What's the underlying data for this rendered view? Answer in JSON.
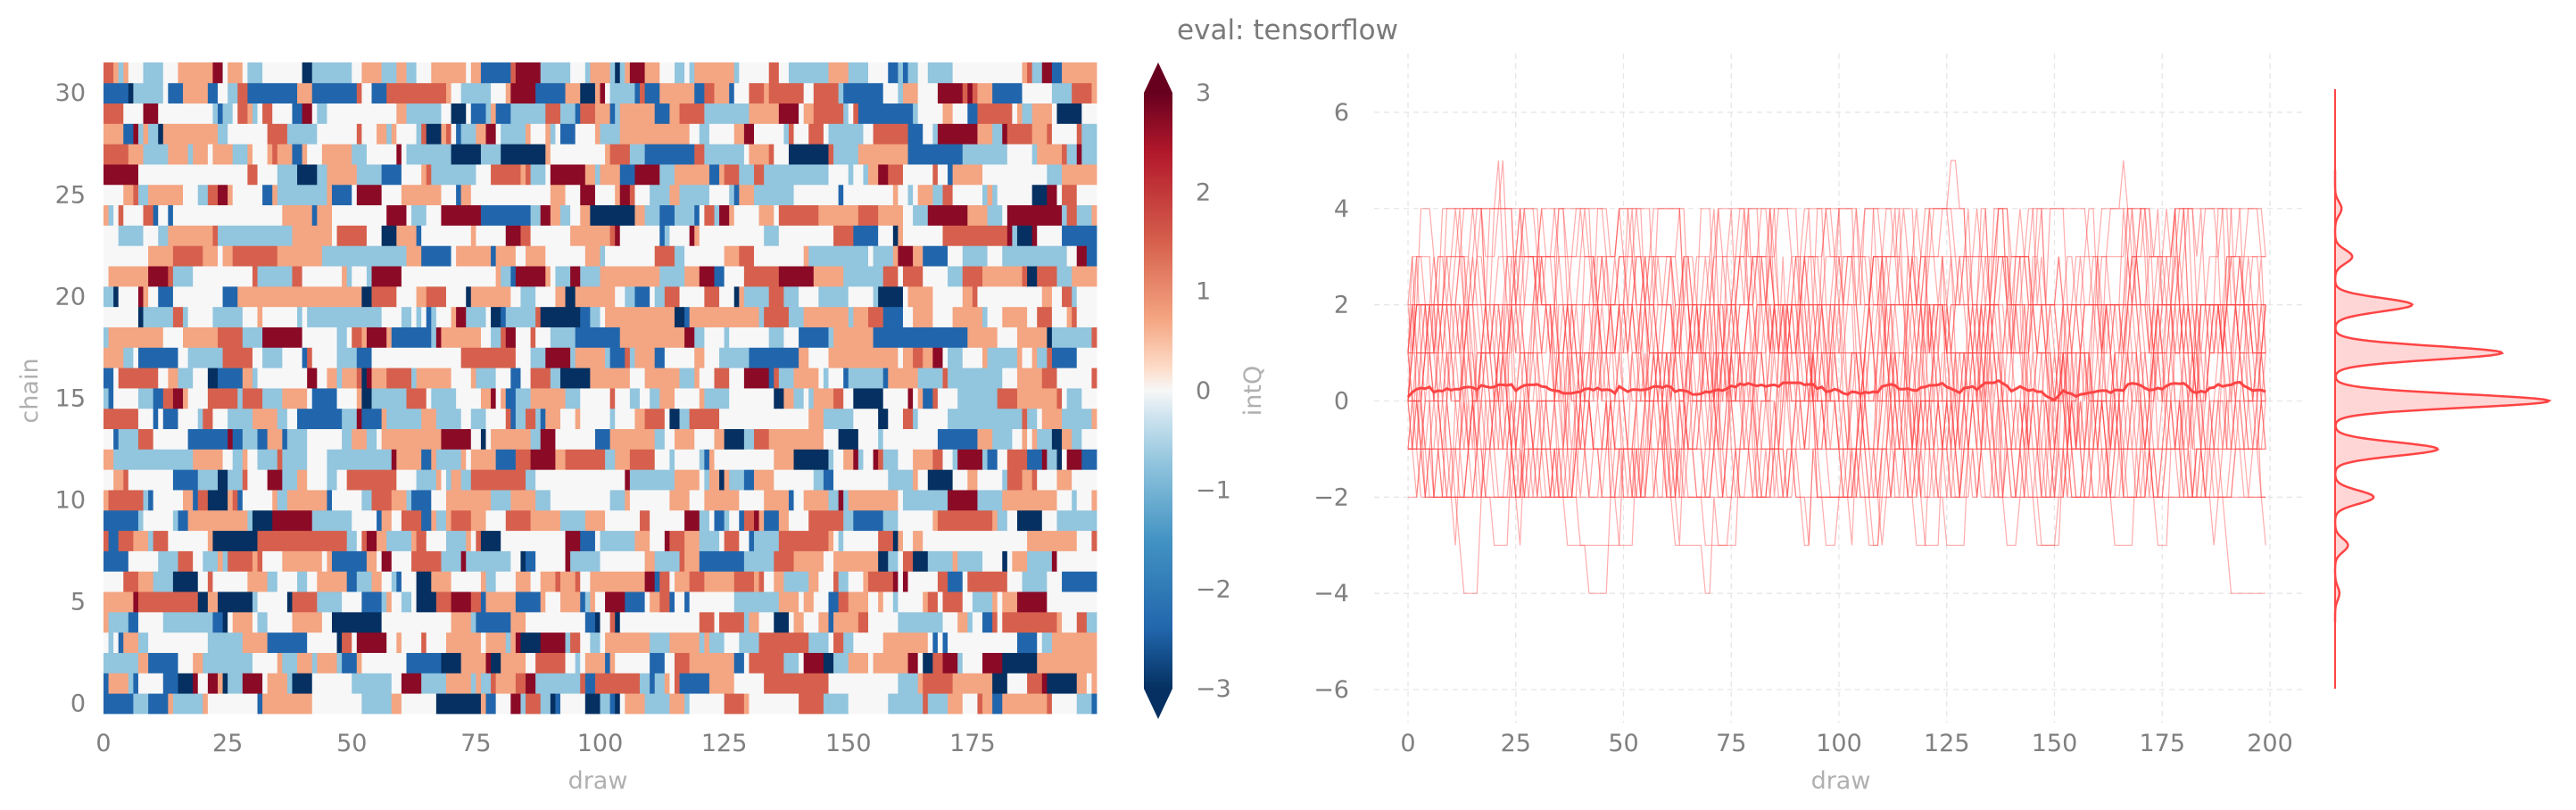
{
  "title": "eval: tensorflow",
  "colors": {
    "accent": "#ff4444",
    "text": "#808080",
    "label": "#b0b0b0",
    "cmap_low": "#053061",
    "cmap_mid": "#f7f7f7",
    "cmap_high": "#67001f"
  },
  "chart_data": [
    {
      "type": "heatmap",
      "xlabel": "draw",
      "ylabel": "chain",
      "colorbar_label": "intQ",
      "xlim": [
        0,
        200
      ],
      "ylim": [
        0,
        31
      ],
      "n_draws": 200,
      "n_chains": 32,
      "value_range": [
        -3,
        3
      ],
      "colormap": "RdBu_r",
      "colorbar_extend": "both",
      "x_ticks": [
        "0",
        "25",
        "50",
        "75",
        "100",
        "125",
        "150",
        "175"
      ],
      "y_ticks": [
        "0",
        "5",
        "10",
        "15",
        "20",
        "25",
        "30"
      ],
      "colorbar_ticks": [
        "−3",
        "−2",
        "−1",
        "0",
        "1",
        "2",
        "3"
      ],
      "grid": true
    },
    {
      "type": "line",
      "xlabel": "draw",
      "ylabel": "",
      "xlim": [
        0,
        200
      ],
      "ylim": [
        -6.5,
        7
      ],
      "n_chains": 32,
      "chain_value_range": [
        -5,
        6
      ],
      "chain_color": "#ff4444",
      "mean_line_color": "#ff4444",
      "x_ticks": [
        "0",
        "25",
        "50",
        "75",
        "100",
        "125",
        "150",
        "175",
        "200"
      ],
      "y_ticks": [
        "6",
        "4",
        "2",
        "0",
        "−2",
        "−4",
        "−6"
      ],
      "grid": true,
      "marginal": {
        "type": "density",
        "orientation": "vertical",
        "peaks": [
          {
            "value": -4,
            "density": 0.02
          },
          {
            "value": -3,
            "density": 0.06
          },
          {
            "value": -2,
            "density": 0.18
          },
          {
            "value": -1,
            "density": 0.48
          },
          {
            "value": 0,
            "density": 1.0
          },
          {
            "value": 1,
            "density": 0.78
          },
          {
            "value": 2,
            "density": 0.36
          },
          {
            "value": 3,
            "density": 0.08
          },
          {
            "value": 4,
            "density": 0.03
          }
        ]
      }
    }
  ]
}
